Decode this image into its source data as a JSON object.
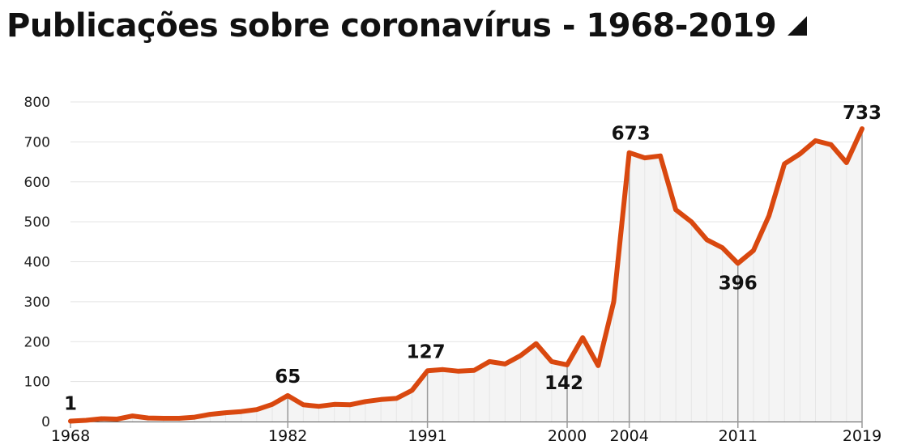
{
  "title": "Publicações sobre coronavírus - 1968-2019",
  "chart_data": {
    "type": "area",
    "title": "Publicações sobre coronavírus - 1968-2019",
    "xlabel": "",
    "ylabel": "",
    "ylim": [
      0,
      800
    ],
    "xlim": [
      1968,
      2019
    ],
    "y_ticks": [
      "0",
      "100",
      "200",
      "300",
      "400",
      "500",
      "600",
      "700",
      "800"
    ],
    "x_tick_labels": [
      "1968",
      "1982",
      "1991",
      "2000",
      "2004",
      "2011",
      "2019"
    ],
    "grid": true,
    "legend": "none",
    "line_color": "#d9480f",
    "fill_color": "#f4f4f4",
    "series": [
      {
        "x": [
          1968,
          1969,
          1970,
          1971,
          1972,
          1973,
          1974,
          1975,
          1976,
          1977,
          1978,
          1979,
          1980,
          1981,
          1982,
          1983,
          1984,
          1985,
          1986,
          1987,
          1988,
          1989,
          1990,
          1991,
          1992,
          1993,
          1994,
          1995,
          1996,
          1997,
          1998,
          1999,
          2000,
          2001,
          2002,
          2003,
          2004,
          2005,
          2006,
          2007,
          2008,
          2009,
          2010,
          2011,
          2012,
          2013,
          2014,
          2015,
          2016,
          2017,
          2018,
          2019
        ],
        "values": [
          1,
          3,
          7,
          6,
          14,
          9,
          8,
          8,
          11,
          18,
          22,
          25,
          30,
          43,
          65,
          42,
          38,
          43,
          42,
          50,
          55,
          58,
          78,
          127,
          130,
          126,
          128,
          150,
          144,
          165,
          195,
          150,
          142,
          210,
          140,
          300,
          673,
          660,
          665,
          530,
          500,
          455,
          435,
          396,
          428,
          515,
          645,
          670,
          703,
          693,
          648,
          733
        ]
      }
    ],
    "annotations": [
      {
        "x": 1968,
        "label": "1"
      },
      {
        "x": 1982,
        "label": "65"
      },
      {
        "x": 1991,
        "label": "127"
      },
      {
        "x": 2000,
        "label": "142"
      },
      {
        "x": 2004,
        "label": "673"
      },
      {
        "x": 2011,
        "label": "396"
      },
      {
        "x": 2019,
        "label": "733"
      }
    ]
  }
}
